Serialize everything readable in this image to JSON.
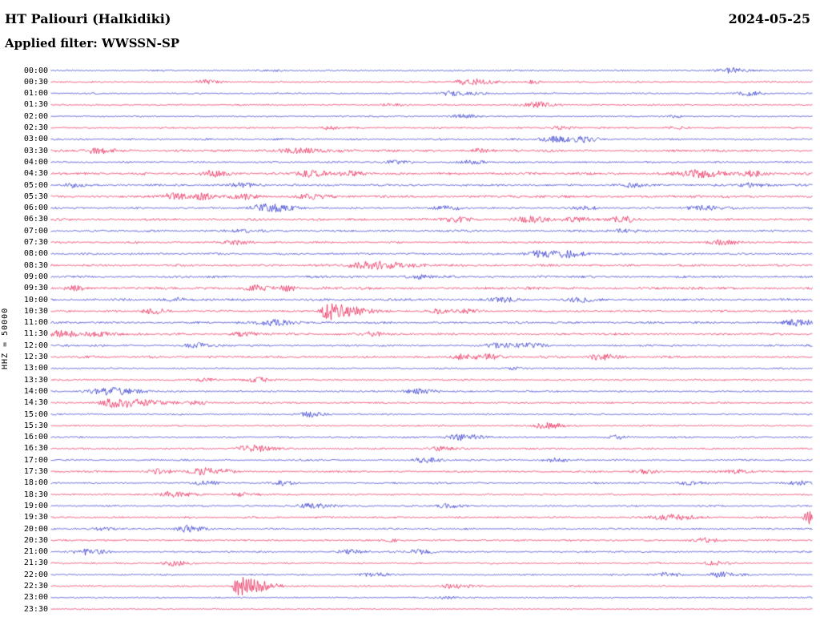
{
  "header": {
    "station": "HT Paliouri (Halkidiki)",
    "date": "2024-05-25",
    "filter": "Applied filter: WWSSN-SP"
  },
  "colors": {
    "blue": "#2128c8",
    "red": "#e8174b",
    "background": "#ffffff",
    "text": "#000000"
  },
  "chart_data": {
    "type": "line",
    "subtype": "helicorder",
    "title": "HT Paliouri (Halkidiki)",
    "date": "2024-05-25",
    "filter": "WWSSN-SP",
    "ylabel": "HHZ = 50000",
    "row_duration_minutes": 30,
    "rows": [
      {
        "time": "00:00",
        "color": "blue",
        "noise": 0.9,
        "events": [
          [
            0.895,
            3,
            0.012,
            1.5
          ],
          [
            0.3,
            1,
            0.01,
            1
          ]
        ]
      },
      {
        "time": "00:30",
        "color": "red",
        "noise": 0.95,
        "events": [
          [
            0.2,
            2.5,
            0.008,
            2
          ],
          [
            0.55,
            3.5,
            0.012,
            2
          ],
          [
            0.63,
            2,
            0.006,
            1.5
          ]
        ]
      },
      {
        "time": "01:00",
        "color": "blue",
        "noise": 0.85,
        "events": [
          [
            0.53,
            3,
            0.012,
            2
          ],
          [
            0.917,
            2.5,
            0.01,
            1.5
          ]
        ]
      },
      {
        "time": "01:30",
        "color": "red",
        "noise": 0.9,
        "events": [
          [
            0.633,
            3.5,
            0.01,
            2
          ],
          [
            0.45,
            1.5,
            0.01,
            1
          ]
        ]
      },
      {
        "time": "02:00",
        "color": "blue",
        "noise": 0.85,
        "events": [
          [
            0.54,
            2,
            0.01,
            1.5
          ],
          [
            0.82,
            1.5,
            0.008,
            1
          ]
        ]
      },
      {
        "time": "02:30",
        "color": "red",
        "noise": 0.95,
        "events": [
          [
            0.365,
            1.8,
            0.008,
            1.5
          ],
          [
            0.67,
            2,
            0.008,
            1.5
          ],
          [
            0.82,
            1.8,
            0.008,
            1.5
          ]
        ]
      },
      {
        "time": "03:00",
        "color": "blue",
        "noise": 1.1,
        "events": [
          [
            0.66,
            3.5,
            0.012,
            2
          ],
          [
            0.7,
            2.5,
            0.008,
            1.5
          ]
        ]
      },
      {
        "time": "03:30",
        "color": "red",
        "noise": 1.4,
        "events": [
          [
            0.06,
            3,
            0.01,
            2
          ],
          [
            0.32,
            3,
            0.015,
            2
          ],
          [
            0.56,
            2,
            0.01,
            1.5
          ]
        ]
      },
      {
        "time": "04:00",
        "color": "blue",
        "noise": 1.0,
        "events": [
          [
            0.45,
            2,
            0.01,
            1.5
          ],
          [
            0.55,
            2,
            0.01,
            1.5
          ]
        ]
      },
      {
        "time": "04:30",
        "color": "red",
        "noise": 1.5,
        "events": [
          [
            0.21,
            3,
            0.01,
            1.5
          ],
          [
            0.34,
            3.5,
            0.015,
            1.5
          ],
          [
            0.39,
            3,
            0.008,
            1.5
          ],
          [
            0.85,
            4.5,
            0.018,
            1.5
          ],
          [
            0.92,
            3,
            0.01,
            1.5
          ]
        ]
      },
      {
        "time": "05:00",
        "color": "blue",
        "noise": 1.3,
        "events": [
          [
            0.03,
            2.5,
            0.008,
            1.5
          ],
          [
            0.25,
            2.5,
            0.01,
            1.5
          ],
          [
            0.76,
            2.5,
            0.01,
            1.5
          ],
          [
            0.92,
            2.5,
            0.01,
            1.5
          ]
        ]
      },
      {
        "time": "05:30",
        "color": "red",
        "noise": 1.5,
        "events": [
          [
            0.16,
            3.5,
            0.01,
            1.5
          ],
          [
            0.2,
            3,
            0.008,
            1.5
          ],
          [
            0.25,
            3.5,
            0.01,
            1.5
          ],
          [
            0.34,
            3,
            0.01,
            1.5
          ]
        ]
      },
      {
        "time": "06:00",
        "color": "blue",
        "noise": 1.1,
        "events": [
          [
            0.28,
            4.5,
            0.014,
            2
          ],
          [
            0.52,
            2.5,
            0.01,
            1.5
          ],
          [
            0.7,
            2,
            0.008,
            1.5
          ],
          [
            0.85,
            3,
            0.012,
            2
          ]
        ]
      },
      {
        "time": "06:30",
        "color": "red",
        "noise": 1.4,
        "events": [
          [
            0.53,
            3,
            0.012,
            1.5
          ],
          [
            0.63,
            3.5,
            0.012,
            1.5
          ],
          [
            0.69,
            3,
            0.01,
            1.5
          ],
          [
            0.75,
            3,
            0.01,
            1.5
          ]
        ]
      },
      {
        "time": "07:00",
        "color": "blue",
        "noise": 1.2,
        "events": [
          [
            0.25,
            2,
            0.01,
            1.5
          ],
          [
            0.75,
            2.5,
            0.01,
            1.5
          ]
        ]
      },
      {
        "time": "07:30",
        "color": "red",
        "noise": 1.1,
        "events": [
          [
            0.24,
            2.5,
            0.01,
            1.5
          ],
          [
            0.88,
            3,
            0.012,
            1.5
          ]
        ]
      },
      {
        "time": "08:00",
        "color": "blue",
        "noise": 1.2,
        "events": [
          [
            0.64,
            4,
            0.012,
            2
          ],
          [
            0.68,
            3.5,
            0.01,
            1.5
          ]
        ]
      },
      {
        "time": "08:30",
        "color": "red",
        "noise": 1.3,
        "events": [
          [
            0.42,
            4.5,
            0.02,
            2
          ]
        ]
      },
      {
        "time": "09:00",
        "color": "blue",
        "noise": 1.3,
        "events": [
          [
            0.48,
            2,
            0.01,
            1.5
          ]
        ]
      },
      {
        "time": "09:30",
        "color": "red",
        "noise": 1.5,
        "events": [
          [
            0.03,
            3,
            0.008,
            1.5
          ],
          [
            0.27,
            3.5,
            0.01,
            1.5
          ],
          [
            0.31,
            3,
            0.008,
            1.5
          ]
        ]
      },
      {
        "time": "10:00",
        "color": "blue",
        "noise": 1.4,
        "events": [
          [
            0.165,
            2.5,
            0.01,
            1.5
          ],
          [
            0.59,
            2.5,
            0.01,
            1.5
          ],
          [
            0.69,
            2.5,
            0.01,
            1.5
          ]
        ]
      },
      {
        "time": "10:30",
        "color": "red",
        "noise": 1.2,
        "events": [
          [
            0.36,
            11,
            0.004,
            8
          ],
          [
            0.134,
            3,
            0.01,
            1.5
          ],
          [
            0.51,
            2.5,
            0.01,
            1.5
          ],
          [
            0.545,
            2.5,
            0.008,
            1.5
          ]
        ]
      },
      {
        "time": "11:00",
        "color": "blue",
        "noise": 1.3,
        "events": [
          [
            0.29,
            3.5,
            0.014,
            1.5
          ],
          [
            0.98,
            3.5,
            0.012,
            1.5
          ]
        ]
      },
      {
        "time": "11:30",
        "color": "red",
        "noise": 1.3,
        "events": [
          [
            0.01,
            4,
            0.008,
            3
          ],
          [
            0.06,
            3,
            0.01,
            1.5
          ],
          [
            0.25,
            2.5,
            0.01,
            1.5
          ],
          [
            0.42,
            2.5,
            0.01,
            1.5
          ]
        ]
      },
      {
        "time": "12:00",
        "color": "blue",
        "noise": 1.2,
        "events": [
          [
            0.19,
            3,
            0.01,
            1.5
          ],
          [
            0.59,
            3,
            0.012,
            1.5
          ],
          [
            0.63,
            2.5,
            0.008,
            1.5
          ]
        ]
      },
      {
        "time": "12:30",
        "color": "red",
        "noise": 1.4,
        "events": [
          [
            0.54,
            3,
            0.01,
            1.5
          ],
          [
            0.575,
            2.5,
            0.008,
            1.5
          ],
          [
            0.72,
            3,
            0.01,
            1.5
          ]
        ]
      },
      {
        "time": "13:00",
        "color": "blue",
        "noise": 0.9,
        "events": [
          [
            0.61,
            1.5,
            0.008,
            1.5
          ]
        ]
      },
      {
        "time": "13:30",
        "color": "red",
        "noise": 1.1,
        "events": [
          [
            0.2,
            2,
            0.008,
            1.5
          ],
          [
            0.27,
            3,
            0.01,
            1.5
          ]
        ]
      },
      {
        "time": "14:00",
        "color": "blue",
        "noise": 1.0,
        "events": [
          [
            0.07,
            5.5,
            0.012,
            2.5
          ],
          [
            0.48,
            3,
            0.012,
            1.5
          ]
        ]
      },
      {
        "time": "14:30",
        "color": "red",
        "noise": 1.1,
        "events": [
          [
            0.08,
            6,
            0.01,
            4
          ],
          [
            0.19,
            2,
            0.008,
            1.5
          ]
        ]
      },
      {
        "time": "15:00",
        "color": "blue",
        "noise": 0.9,
        "events": [
          [
            0.34,
            3,
            0.01,
            1.5
          ]
        ]
      },
      {
        "time": "15:30",
        "color": "red",
        "noise": 0.9,
        "events": [
          [
            0.65,
            3.5,
            0.012,
            1.5
          ]
        ]
      },
      {
        "time": "16:00",
        "color": "blue",
        "noise": 1.0,
        "events": [
          [
            0.54,
            3.5,
            0.014,
            1.5
          ],
          [
            0.74,
            2,
            0.008,
            1.5
          ]
        ]
      },
      {
        "time": "16:30",
        "color": "red",
        "noise": 1.0,
        "events": [
          [
            0.26,
            4,
            0.012,
            2
          ],
          [
            0.51,
            2.5,
            0.01,
            1.5
          ]
        ]
      },
      {
        "time": "17:00",
        "color": "blue",
        "noise": 1.0,
        "events": [
          [
            0.49,
            3,
            0.01,
            1.5
          ],
          [
            0.66,
            2.5,
            0.01,
            1.5
          ]
        ]
      },
      {
        "time": "17:30",
        "color": "red",
        "noise": 1.1,
        "events": [
          [
            0.14,
            3,
            0.01,
            1.5
          ],
          [
            0.2,
            4,
            0.012,
            2
          ],
          [
            0.78,
            2.5,
            0.008,
            1.5
          ],
          [
            0.9,
            2.5,
            0.008,
            1.5
          ]
        ]
      },
      {
        "time": "18:00",
        "color": "blue",
        "noise": 1.0,
        "events": [
          [
            0.2,
            2.5,
            0.01,
            1.5
          ],
          [
            0.3,
            2.5,
            0.01,
            1.5
          ],
          [
            0.84,
            2.5,
            0.01,
            1.5
          ],
          [
            0.985,
            2.5,
            0.01,
            1.5
          ]
        ]
      },
      {
        "time": "18:30",
        "color": "red",
        "noise": 1.0,
        "events": [
          [
            0.16,
            3.5,
            0.012,
            1.5
          ],
          [
            0.25,
            2.5,
            0.01,
            1.5
          ]
        ]
      },
      {
        "time": "19:00",
        "color": "blue",
        "noise": 1.0,
        "events": [
          [
            0.34,
            3,
            0.012,
            1.5
          ],
          [
            0.52,
            2.5,
            0.01,
            1.5
          ]
        ]
      },
      {
        "time": "19:30",
        "color": "red",
        "noise": 1.1,
        "events": [
          [
            0.81,
            3.5,
            0.014,
            1.5
          ],
          [
            0.993,
            8,
            0.003,
            3
          ]
        ]
      },
      {
        "time": "20:00",
        "color": "blue",
        "noise": 1.0,
        "events": [
          [
            0.065,
            2,
            0.008,
            1.5
          ],
          [
            0.176,
            4,
            0.008,
            2
          ]
        ]
      },
      {
        "time": "20:30",
        "color": "red",
        "noise": 1.1,
        "events": [
          [
            0.44,
            1.8,
            0.008,
            1.5
          ],
          [
            0.86,
            2.5,
            0.01,
            1.5
          ]
        ]
      },
      {
        "time": "21:00",
        "color": "blue",
        "noise": 1.0,
        "events": [
          [
            0.044,
            4,
            0.01,
            2
          ],
          [
            0.39,
            2.5,
            0.01,
            1.5
          ],
          [
            0.48,
            2.5,
            0.01,
            1.5
          ]
        ]
      },
      {
        "time": "21:30",
        "color": "red",
        "noise": 1.0,
        "events": [
          [
            0.16,
            3,
            0.01,
            1.5
          ],
          [
            0.87,
            2.5,
            0.01,
            1.5
          ]
        ]
      },
      {
        "time": "22:00",
        "color": "blue",
        "noise": 1.0,
        "events": [
          [
            0.42,
            2.5,
            0.01,
            1.5
          ],
          [
            0.81,
            2.5,
            0.01,
            1.5
          ],
          [
            0.88,
            3,
            0.01,
            1.5
          ]
        ]
      },
      {
        "time": "22:30",
        "color": "red",
        "noise": 0.9,
        "events": [
          [
            0.244,
            11,
            0.003,
            10
          ],
          [
            0.53,
            2.5,
            0.012,
            1.5
          ]
        ]
      },
      {
        "time": "23:00",
        "color": "blue",
        "noise": 0.8,
        "events": [
          [
            0.52,
            1.5,
            0.008,
            1.5
          ]
        ]
      },
      {
        "time": "23:30",
        "color": "red",
        "noise": 0.7,
        "events": []
      }
    ]
  }
}
